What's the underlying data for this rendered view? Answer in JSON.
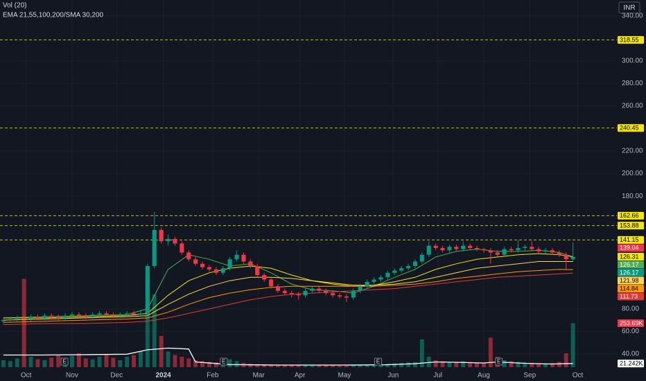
{
  "chart_data": {
    "type": "candlestick",
    "indicators": [
      "Vol (20)",
      "EMA 21,55,100,200/SMA 30,200"
    ],
    "currency": "INR",
    "grid": true,
    "up_color": "#089981",
    "down_color": "#f23645",
    "xlim": [
      -0.5,
      89.4
    ],
    "ylim": [
      16,
      354
    ],
    "yticks": [
      {
        "value": 340,
        "label": "340.00"
      },
      {
        "value": 300,
        "label": "300.00"
      },
      {
        "value": 280,
        "label": "280.00"
      },
      {
        "value": 260,
        "label": "260.00"
      },
      {
        "value": 220,
        "label": "220.00"
      },
      {
        "value": 200,
        "label": "200.00"
      },
      {
        "value": 180,
        "label": "180.00"
      },
      {
        "value": 80,
        "label": "80.00"
      },
      {
        "value": 60,
        "label": "60.00"
      },
      {
        "value": 40,
        "label": "40.00"
      }
    ],
    "xticks": [
      {
        "value": 3.3,
        "label": "Oct"
      },
      {
        "value": 10,
        "label": "Nov"
      },
      {
        "value": 16.5,
        "label": "Dec"
      },
      {
        "value": 23.3,
        "label": "2024"
      },
      {
        "value": 30.5,
        "label": "Feb"
      },
      {
        "value": 37.2,
        "label": "Mar"
      },
      {
        "value": 43.2,
        "label": "Apr"
      },
      {
        "value": 49.7,
        "label": "May"
      },
      {
        "value": 56.8,
        "label": "Jun"
      },
      {
        "value": 63.3,
        "label": "Jul"
      },
      {
        "value": 70,
        "label": "Aug"
      },
      {
        "value": 76.7,
        "label": "Sep"
      },
      {
        "value": 83.7,
        "label": "Oct"
      }
    ],
    "open": [
      69,
      70,
      71,
      72,
      71,
      73,
      72,
      74,
      73,
      72,
      74,
      75,
      74,
      73,
      75,
      76,
      75,
      74,
      75,
      76,
      75,
      76,
      118,
      150,
      140,
      142,
      138,
      130,
      124,
      120,
      117,
      115,
      112,
      116,
      124,
      128,
      122,
      118,
      110,
      106,
      100,
      96,
      94,
      93,
      92,
      96,
      98,
      96,
      94,
      92,
      91,
      90,
      96,
      100,
      104,
      106,
      108,
      112,
      114,
      116,
      118,
      122,
      128,
      136,
      134,
      132,
      135,
      133,
      136,
      134,
      133,
      132,
      130,
      128,
      133,
      132,
      134,
      135,
      133,
      131,
      132,
      130,
      128,
      124
    ],
    "high": [
      72,
      73,
      74,
      74,
      75,
      75,
      76,
      76,
      75,
      76,
      77,
      77,
      76,
      77,
      78,
      78,
      77,
      77,
      78,
      78,
      78,
      120,
      166,
      152,
      146,
      144,
      140,
      132,
      126,
      122,
      119,
      117,
      118,
      126,
      132,
      130,
      124,
      120,
      112,
      108,
      102,
      98,
      96,
      95,
      98,
      100,
      100,
      98,
      96,
      94,
      93,
      98,
      102,
      106,
      108,
      110,
      114,
      116,
      118,
      120,
      124,
      130,
      140,
      138,
      136,
      137,
      137,
      140,
      138,
      136,
      134,
      134,
      132,
      135,
      135,
      141,
      137,
      140,
      135,
      134,
      134,
      132,
      130,
      139
    ],
    "low": [
      67,
      68,
      69,
      69,
      69,
      70,
      70,
      71,
      70,
      70,
      72,
      72,
      71,
      71,
      73,
      73,
      72,
      72,
      73,
      73,
      73,
      74,
      116,
      138,
      136,
      136,
      128,
      122,
      118,
      115,
      113,
      110,
      110,
      114,
      122,
      120,
      116,
      108,
      104,
      98,
      94,
      92,
      90,
      88,
      90,
      94,
      94,
      92,
      90,
      89,
      86,
      88,
      94,
      98,
      102,
      104,
      106,
      110,
      112,
      114,
      116,
      120,
      126,
      132,
      130,
      130,
      131,
      131,
      132,
      131,
      130,
      120,
      126,
      126,
      130,
      130,
      132,
      131,
      129,
      129,
      128,
      126,
      114,
      122
    ],
    "close": [
      70,
      71,
      72,
      71,
      73,
      72,
      74,
      73,
      72,
      74,
      75,
      74,
      73,
      75,
      76,
      75,
      74,
      75,
      76,
      75,
      76,
      118,
      150,
      140,
      142,
      138,
      130,
      124,
      120,
      117,
      115,
      112,
      116,
      124,
      128,
      122,
      118,
      110,
      106,
      100,
      96,
      94,
      93,
      92,
      96,
      98,
      96,
      94,
      92,
      91,
      90,
      96,
      100,
      104,
      106,
      108,
      112,
      114,
      116,
      118,
      122,
      128,
      136,
      134,
      132,
      135,
      133,
      136,
      134,
      133,
      132,
      130,
      128,
      133,
      132,
      134,
      135,
      133,
      131,
      132,
      130,
      128,
      124,
      126.17
    ],
    "series": [
      {
        "color": "#4caf50",
        "x": [
          0,
          6,
          12,
          18,
          21,
          24,
          27,
          30,
          33,
          36,
          39,
          42,
          45,
          48,
          51,
          54,
          57,
          60,
          63,
          66,
          69,
          72,
          75,
          78,
          81,
          83
        ],
        "values": [
          72,
          73,
          74,
          75,
          80,
          115,
          128,
          124,
          118,
          120,
          112,
          102,
          97,
          96,
          94,
          100,
          108,
          115,
          126,
          131,
          133,
          131,
          131,
          132,
          130,
          126.17
        ]
      },
      {
        "color": "#f5e600",
        "x": [
          0,
          6,
          12,
          18,
          21,
          24,
          27,
          30,
          33,
          36,
          39,
          42,
          45,
          48,
          51,
          54,
          57,
          60,
          63,
          66,
          69,
          72,
          75,
          78,
          81,
          83
        ],
        "values": [
          72,
          72,
          73,
          74,
          76,
          92,
          105,
          112,
          116,
          118,
          116,
          110,
          105,
          102,
          100,
          101,
          104,
          108,
          115,
          120,
          124,
          126,
          128,
          129,
          128,
          126.31
        ]
      },
      {
        "color": "#ffd54f",
        "x": [
          0,
          6,
          12,
          18,
          21,
          24,
          27,
          30,
          33,
          36,
          39,
          42,
          45,
          48,
          51,
          54,
          57,
          60,
          63,
          66,
          69,
          72,
          75,
          78,
          81,
          83
        ],
        "values": [
          70,
          71,
          72,
          73,
          74,
          84,
          93,
          100,
          105,
          108,
          108,
          107,
          105,
          103,
          101,
          101,
          102,
          104,
          108,
          112,
          116,
          118,
          120,
          122,
          122,
          121.98
        ]
      },
      {
        "color": "#ff9800",
        "x": [
          0,
          6,
          12,
          18,
          21,
          24,
          27,
          30,
          33,
          36,
          39,
          42,
          45,
          48,
          51,
          54,
          57,
          60,
          63,
          66,
          69,
          72,
          75,
          78,
          81,
          83
        ],
        "values": [
          68,
          69,
          70,
          71,
          72,
          77,
          84,
          90,
          94,
          97,
          99,
          100,
          100,
          100,
          100,
          100,
          101,
          102,
          104,
          107,
          109,
          111,
          113,
          114,
          115,
          114.84
        ]
      },
      {
        "color": "#e53935",
        "x": [
          0,
          6,
          12,
          18,
          21,
          24,
          27,
          30,
          33,
          36,
          39,
          42,
          45,
          48,
          51,
          54,
          57,
          60,
          63,
          66,
          69,
          72,
          75,
          78,
          81,
          83
        ],
        "values": [
          66,
          67,
          67,
          68,
          69,
          72,
          76,
          80,
          84,
          88,
          91,
          93,
          94,
          95,
          96,
          97,
          98,
          100,
          102,
          104,
          106,
          108,
          109,
          110,
          111,
          111.73
        ]
      }
    ],
    "levels": {
      "color": "#f5e600",
      "values": [
        318.55,
        240.45,
        162.66,
        153.88,
        141.15
      ]
    },
    "price_labels": [
      {
        "value": 139.04,
        "color": "#f23645"
      }
    ],
    "events": [
      {
        "label": "E",
        "x": 8.9
      },
      {
        "label": "E",
        "x": 32.1
      },
      {
        "label": "E",
        "x": 54.6
      },
      {
        "label": "E",
        "x": 72.2
      }
    ],
    "volume": {
      "lim": [
        0,
        520000
      ],
      "values": [
        40000,
        35000,
        50000,
        510000,
        60000,
        45000,
        40000,
        55000,
        70000,
        30000,
        65000,
        80000,
        50000,
        45000,
        60000,
        75000,
        55000,
        40000,
        60000,
        70000,
        90000,
        500000,
        420000,
        180000,
        90000,
        70000,
        60000,
        50000,
        40000,
        35000,
        30000,
        28000,
        40000,
        45000,
        35000,
        25000,
        20000,
        18000,
        16000,
        15000,
        14000,
        13000,
        12000,
        12000,
        14000,
        12000,
        11000,
        10000,
        10000,
        9000,
        9000,
        12000,
        14000,
        15000,
        16000,
        18000,
        20000,
        22000,
        25000,
        28000,
        30000,
        160000,
        60000,
        40000,
        35000,
        30000,
        28000,
        35000,
        30000,
        25000,
        22000,
        170000,
        60000,
        40000,
        35000,
        30000,
        28000,
        25000,
        22000,
        20000,
        25000,
        30000,
        80000,
        253690
      ],
      "last_label": "253.69K",
      "ma": {
        "color": "#ffffff",
        "x": [
          0,
          6,
          12,
          18,
          21,
          24,
          27,
          28,
          33,
          40,
          50,
          56,
          60,
          63,
          66,
          70,
          72,
          76,
          80,
          83
        ],
        "values": [
          70000,
          70000,
          72000,
          75000,
          100000,
          110000,
          105000,
          30000,
          15000,
          12000,
          12000,
          14000,
          20000,
          30000,
          28000,
          24000,
          30000,
          22000,
          18000,
          21242
        ],
        "last_label": "21.242K"
      }
    }
  }
}
